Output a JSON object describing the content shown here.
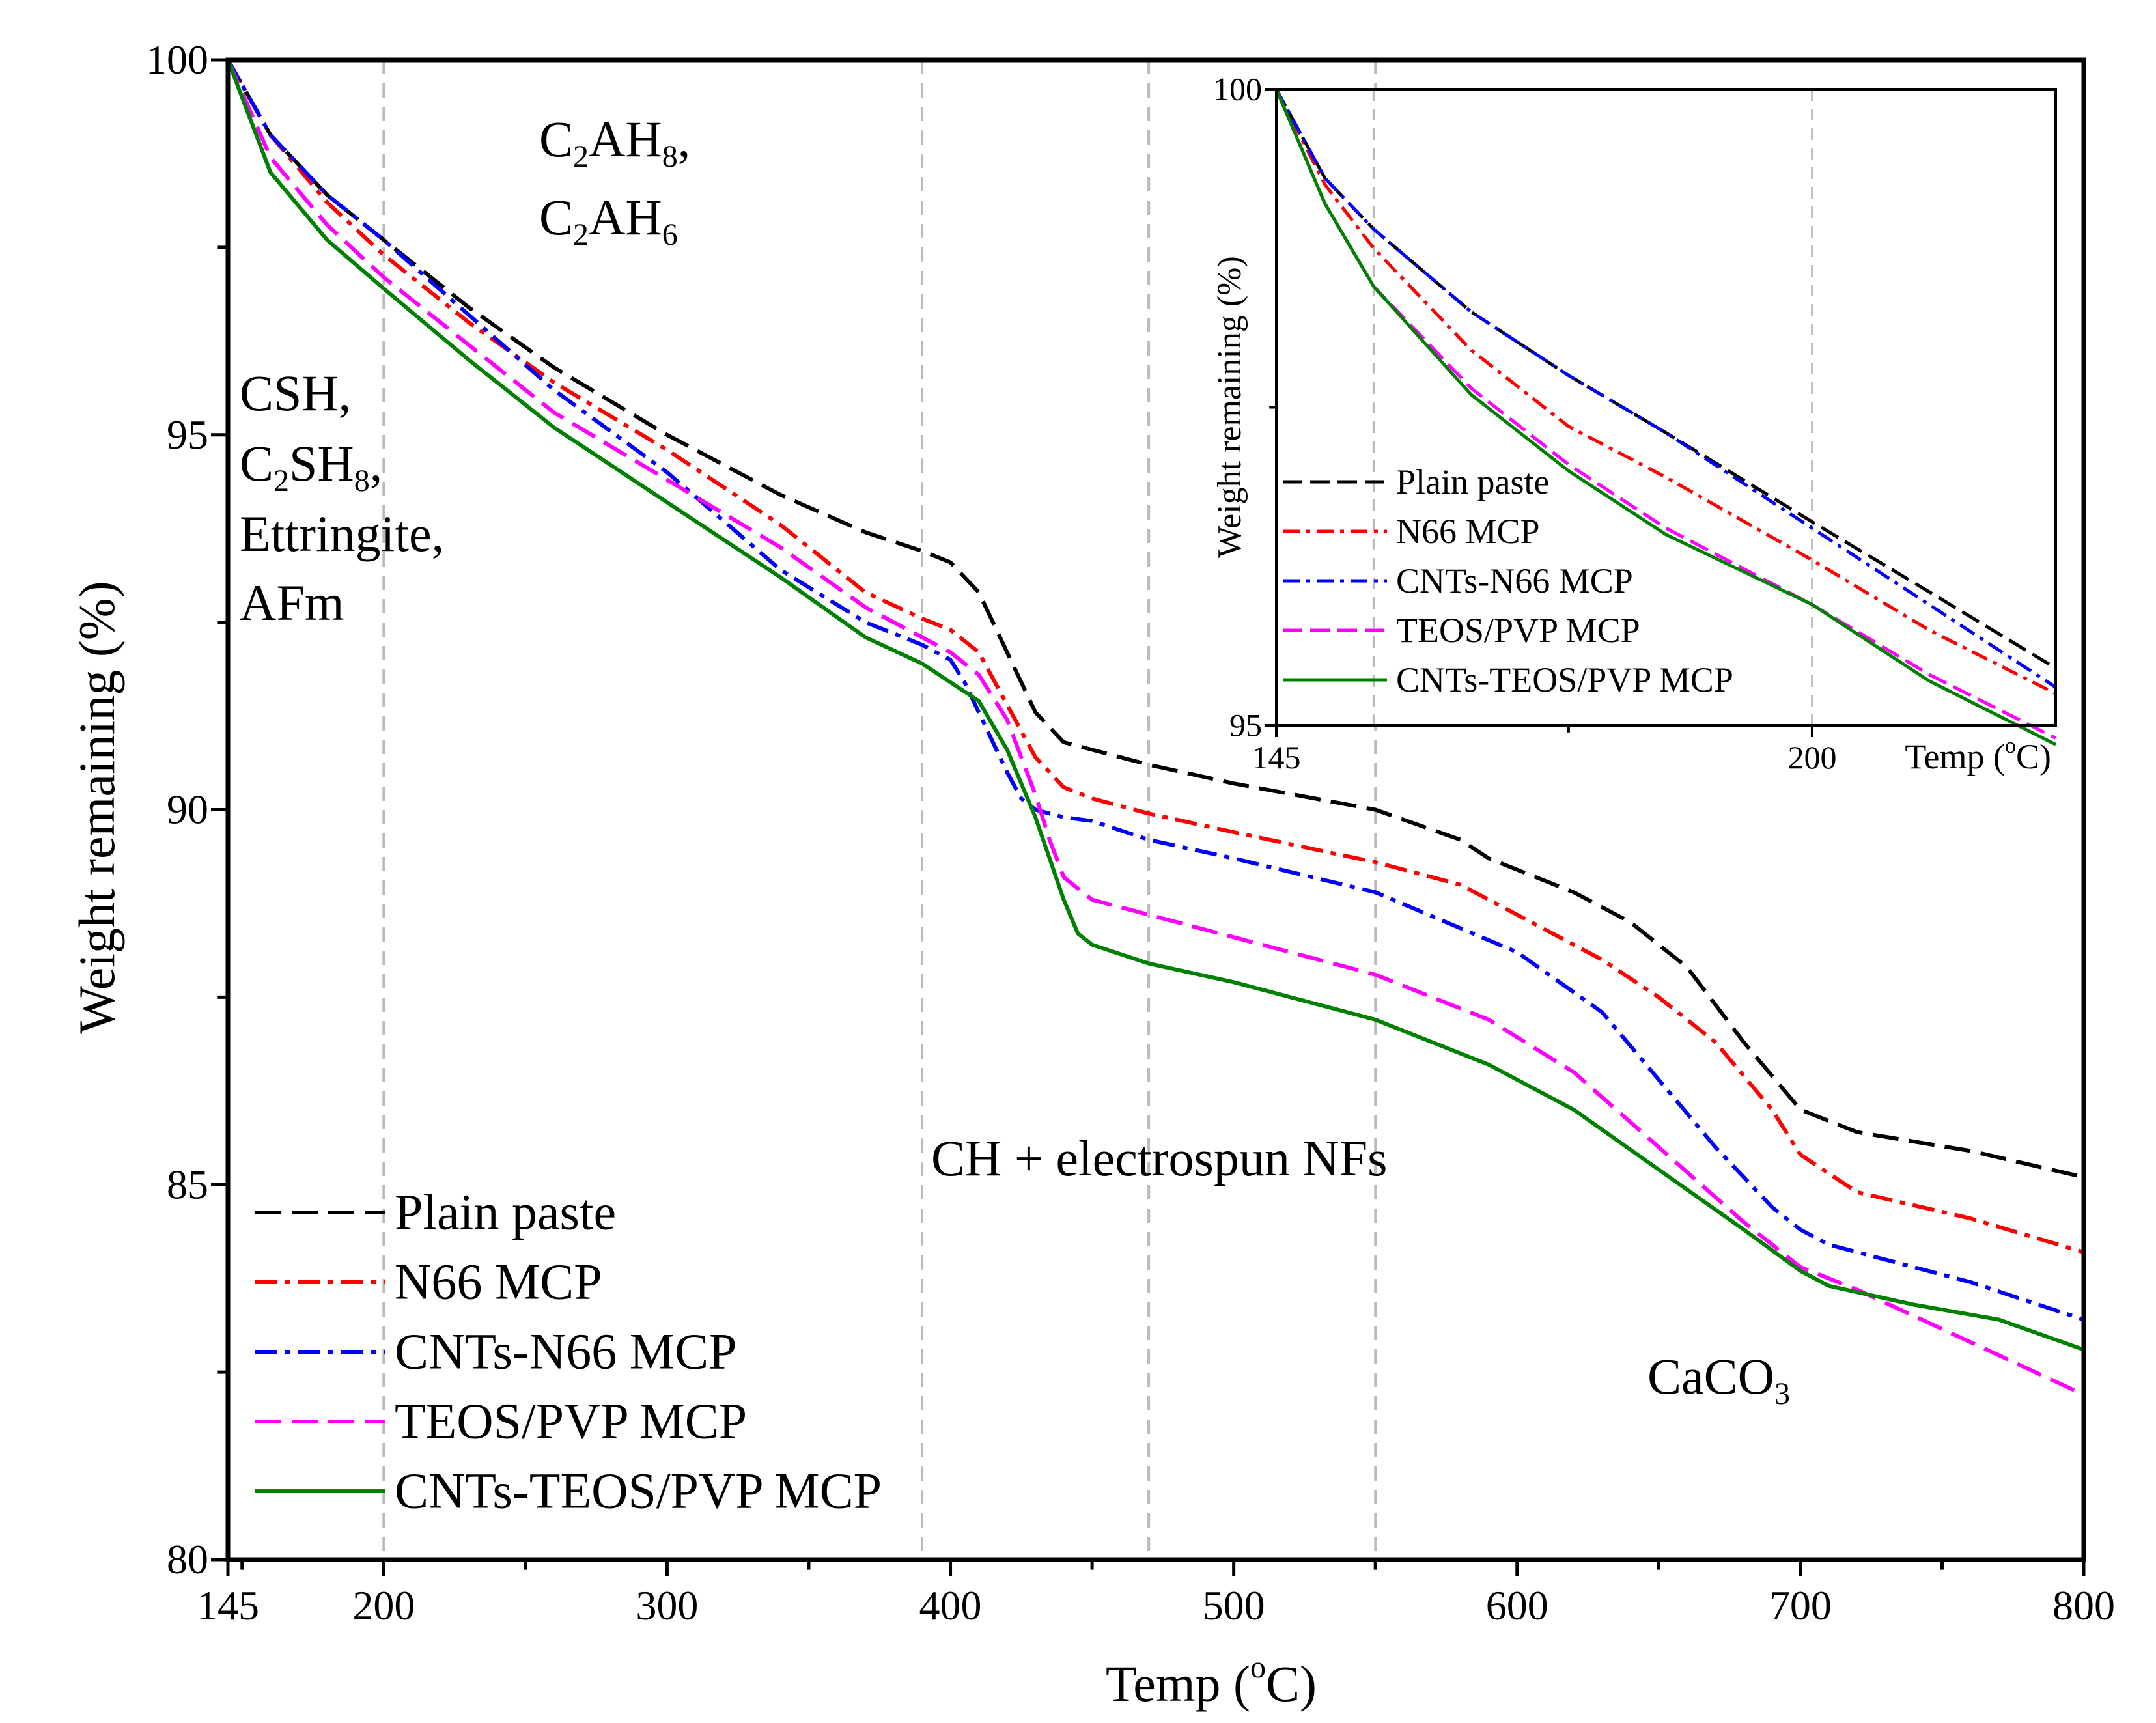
{
  "chart_data": [
    {
      "type": "line",
      "xlabel_base": "Temp (",
      "xlabel_sup": "o",
      "xlabel_end": "C)",
      "ylabel": "Weight remaining (%)",
      "xlim": [
        145,
        800
      ],
      "ylim": [
        80,
        100
      ],
      "xticks": [
        145,
        200,
        300,
        400,
        500,
        600,
        700,
        800
      ],
      "yticks": [
        80,
        85,
        90,
        95,
        100
      ],
      "vlines": [
        200,
        390,
        470,
        550
      ],
      "annotations": {
        "c2ah": {
          "l1_a": "C",
          "l1_s": "2",
          "l1_b": "AH",
          "l1_s2": "8",
          "l1_c": ",",
          "l2_a": "C",
          "l2_s": "2",
          "l2_b": "AH",
          "l2_s2": "6"
        },
        "csh": {
          "l1": "CSH,",
          "l2_a": "C",
          "l2_s": "2",
          "l2_b": "SH",
          "l2_s2": "8",
          "l2_c": ",",
          "l3": "Ettringite,",
          "l4": "AFm"
        },
        "ch": "CH + electrospun NFs",
        "caco3_a": "CaCO",
        "caco3_s": "3"
      },
      "legend_position": "lower-left",
      "series": [
        {
          "name": "Plain paste",
          "color": "#000000",
          "dash": "dash",
          "x": [
            145,
            160,
            180,
            200,
            230,
            260,
            300,
            340,
            370,
            390,
            400,
            410,
            420,
            430,
            440,
            450,
            470,
            500,
            550,
            580,
            590,
            620,
            640,
            660,
            680,
            700,
            720,
            760,
            800
          ],
          "y": [
            100,
            99.0,
            98.2,
            97.6,
            96.7,
            95.9,
            95.0,
            94.2,
            93.7,
            93.45,
            93.3,
            92.9,
            92.1,
            91.3,
            90.9,
            90.8,
            90.6,
            90.35,
            90.0,
            89.6,
            89.35,
            88.9,
            88.5,
            87.9,
            86.9,
            86.0,
            85.7,
            85.45,
            85.1
          ]
        },
        {
          "name": "N66 MCP",
          "color": "#ff0000",
          "dash": "dashdot",
          "x": [
            145,
            160,
            180,
            200,
            230,
            260,
            300,
            340,
            370,
            390,
            400,
            410,
            420,
            430,
            440,
            450,
            470,
            500,
            550,
            580,
            600,
            630,
            650,
            670,
            690,
            700,
            720,
            760,
            800
          ],
          "y": [
            100,
            99.0,
            98.1,
            97.4,
            96.5,
            95.7,
            94.8,
            93.8,
            92.9,
            92.55,
            92.4,
            92.1,
            91.4,
            90.7,
            90.3,
            90.15,
            89.95,
            89.7,
            89.3,
            89.0,
            88.6,
            88.0,
            87.5,
            86.9,
            86.0,
            85.4,
            84.9,
            84.55,
            84.1
          ]
        },
        {
          "name": "CNTs-N66 MCP",
          "color": "#0000ff",
          "dash": "dashdot",
          "x": [
            145,
            160,
            180,
            200,
            230,
            260,
            300,
            340,
            370,
            390,
            400,
            405,
            410,
            420,
            425,
            430,
            440,
            450,
            470,
            500,
            550,
            600,
            630,
            650,
            670,
            690,
            700,
            710,
            760,
            800
          ],
          "y": [
            100,
            99.0,
            98.2,
            97.6,
            96.6,
            95.6,
            94.5,
            93.2,
            92.5,
            92.2,
            92.0,
            91.7,
            91.3,
            90.5,
            90.15,
            90.0,
            89.9,
            89.85,
            89.6,
            89.35,
            88.9,
            88.1,
            87.3,
            86.4,
            85.5,
            84.7,
            84.4,
            84.2,
            83.7,
            83.2
          ]
        },
        {
          "name": "TEOS/PVP MCP",
          "color": "#ff00ff",
          "dash": "dash",
          "x": [
            145,
            160,
            180,
            200,
            230,
            260,
            300,
            340,
            370,
            390,
            400,
            410,
            420,
            430,
            435,
            440,
            450,
            470,
            500,
            550,
            590,
            620,
            650,
            680,
            700,
            720,
            760,
            800
          ],
          "y": [
            100,
            98.7,
            97.8,
            97.1,
            96.2,
            95.3,
            94.4,
            93.5,
            92.7,
            92.3,
            92.1,
            91.8,
            91.2,
            90.2,
            89.6,
            89.1,
            88.8,
            88.6,
            88.3,
            87.8,
            87.2,
            86.5,
            85.5,
            84.5,
            83.9,
            83.6,
            82.9,
            82.2
          ]
        },
        {
          "name": "CNTs-TEOS/PVP MCP",
          "color": "#008000",
          "dash": "solid",
          "x": [
            145,
            160,
            180,
            200,
            230,
            260,
            300,
            340,
            370,
            390,
            400,
            410,
            420,
            430,
            440,
            445,
            450,
            470,
            500,
            550,
            590,
            620,
            650,
            680,
            700,
            710,
            740,
            770,
            800
          ],
          "y": [
            100,
            98.5,
            97.6,
            96.95,
            96.0,
            95.1,
            94.1,
            93.1,
            92.3,
            91.95,
            91.7,
            91.45,
            90.8,
            89.9,
            88.8,
            88.35,
            88.2,
            87.95,
            87.7,
            87.2,
            86.6,
            86.0,
            85.2,
            84.4,
            83.85,
            83.65,
            83.4,
            83.2,
            82.8
          ]
        }
      ]
    },
    {
      "type": "line",
      "inset": true,
      "ylabel": "Weight remaining (%)",
      "xlabel_base": "Temp (",
      "xlabel_sup": "o",
      "xlabel_end": "C)",
      "xlim": [
        145,
        225
      ],
      "ylim": [
        95,
        100
      ],
      "xticks": [
        145,
        200
      ],
      "yticks": [
        95,
        100
      ],
      "vlines": [
        155,
        200
      ],
      "legend_position": "lower-left",
      "series": [
        {
          "name": "Plain paste",
          "x": [
            145,
            150,
            155,
            165,
            175,
            185,
            200,
            212,
            225
          ],
          "y": [
            100,
            99.3,
            98.9,
            98.25,
            97.75,
            97.3,
            96.6,
            96.05,
            95.45
          ]
        },
        {
          "name": "N66 MCP",
          "x": [
            145,
            150,
            155,
            165,
            175,
            185,
            200,
            212,
            225
          ],
          "y": [
            100,
            99.25,
            98.75,
            97.95,
            97.35,
            96.95,
            96.3,
            95.75,
            95.25
          ]
        },
        {
          "name": "CNTs-N66 MCP",
          "x": [
            145,
            150,
            155,
            165,
            175,
            185,
            200,
            212,
            225
          ],
          "y": [
            100,
            99.3,
            98.9,
            98.25,
            97.75,
            97.3,
            96.55,
            95.95,
            95.3
          ]
        },
        {
          "name": "TEOS/PVP MCP",
          "x": [
            145,
            150,
            155,
            165,
            175,
            185,
            200,
            212,
            225
          ],
          "y": [
            100,
            99.1,
            98.45,
            97.65,
            97.05,
            96.55,
            95.95,
            95.4,
            94.9
          ]
        },
        {
          "name": "CNTs-TEOS/PVP MCP",
          "x": [
            145,
            150,
            155,
            165,
            175,
            185,
            200,
            212,
            225
          ],
          "y": [
            100,
            99.1,
            98.45,
            97.6,
            97.0,
            96.5,
            95.95,
            95.35,
            94.85
          ]
        }
      ]
    }
  ]
}
